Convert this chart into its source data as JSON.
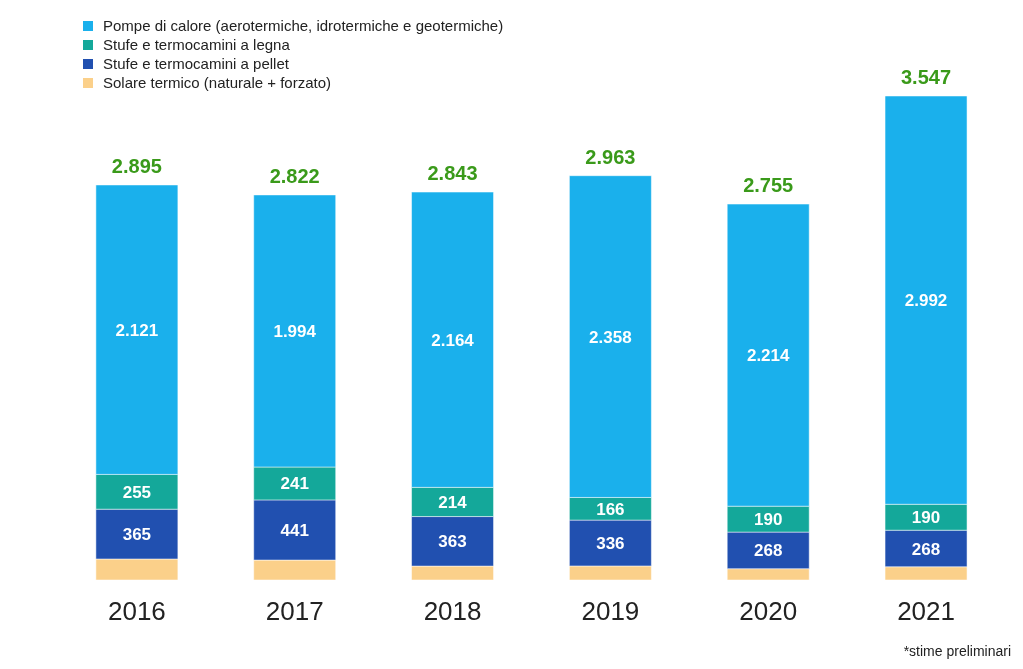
{
  "chart_data": {
    "type": "bar",
    "stacked": true,
    "categories": [
      "2016",
      "2017",
      "2018",
      "2019",
      "2020",
      "2021"
    ],
    "series": [
      {
        "name": "Solare termico (naturale + forzato)",
        "color": "#fbd08a",
        "values": [
          154,
          146,
          102,
          103,
          83,
          97
        ],
        "value_labels": [
          null,
          null,
          null,
          null,
          null,
          null
        ]
      },
      {
        "name": "Stufe e termocamini a pellet",
        "color": "#2150b0",
        "values": [
          365,
          441,
          363,
          336,
          268,
          268
        ],
        "value_labels": [
          "365",
          "441",
          "363",
          "336",
          "268",
          "268"
        ]
      },
      {
        "name": "Stufe e termocamini a legna",
        "color": "#14a89a",
        "values": [
          255,
          241,
          214,
          166,
          190,
          190
        ],
        "value_labels": [
          "255",
          "241",
          "214",
          "166",
          "190",
          "190"
        ]
      },
      {
        "name": "Pompe di calore (aerotermiche, idrotermiche e geotermiche)",
        "color": "#1ab0ec",
        "values": [
          2121,
          1994,
          2164,
          2358,
          2214,
          2992
        ],
        "value_labels": [
          "2.121",
          "1.994",
          "2.164",
          "2.358",
          "2.214",
          "2.992"
        ]
      }
    ],
    "totals": [
      "2.895",
      "2.822",
      "2.843",
      "2.963",
      "2.755",
      "3.547"
    ],
    "legend": "top left",
    "annotations": [
      "*stime preliminari"
    ]
  }
}
